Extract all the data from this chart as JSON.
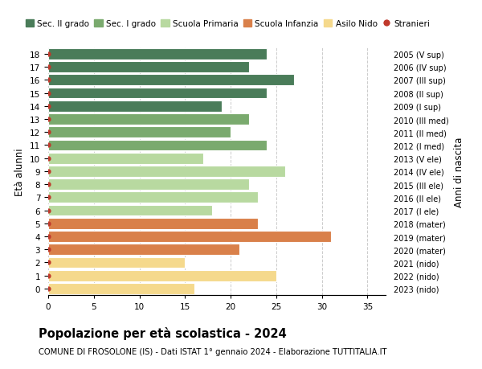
{
  "ages": [
    18,
    17,
    16,
    15,
    14,
    13,
    12,
    11,
    10,
    9,
    8,
    7,
    6,
    5,
    4,
    3,
    2,
    1,
    0
  ],
  "values": [
    24,
    22,
    27,
    24,
    19,
    22,
    20,
    24,
    17,
    26,
    22,
    23,
    18,
    23,
    31,
    21,
    15,
    25,
    16
  ],
  "right_labels": [
    "2005 (V sup)",
    "2006 (IV sup)",
    "2007 (III sup)",
    "2008 (II sup)",
    "2009 (I sup)",
    "2010 (III med)",
    "2011 (II med)",
    "2012 (I med)",
    "2013 (V ele)",
    "2014 (IV ele)",
    "2015 (III ele)",
    "2016 (II ele)",
    "2017 (I ele)",
    "2018 (mater)",
    "2019 (mater)",
    "2020 (mater)",
    "2021 (nido)",
    "2022 (nido)",
    "2023 (nido)"
  ],
  "bar_colors": [
    "#4a7c59",
    "#4a7c59",
    "#4a7c59",
    "#4a7c59",
    "#4a7c59",
    "#7aaa6e",
    "#7aaa6e",
    "#7aaa6e",
    "#b8d9a0",
    "#b8d9a0",
    "#b8d9a0",
    "#b8d9a0",
    "#b8d9a0",
    "#d9804a",
    "#d9804a",
    "#d9804a",
    "#f5d98c",
    "#f5d98c",
    "#f5d98c"
  ],
  "legend_labels": [
    "Sec. II grado",
    "Sec. I grado",
    "Scuola Primaria",
    "Scuola Infanzia",
    "Asilo Nido",
    "Stranieri"
  ],
  "legend_colors": [
    "#4a7c59",
    "#7aaa6e",
    "#b8d9a0",
    "#d9804a",
    "#f5d98c",
    "#c0392b"
  ],
  "title": "Popolazione per età scolastica - 2024",
  "subtitle": "COMUNE DI FROSOLONE (IS) - Dati ISTAT 1° gennaio 2024 - Elaborazione TUTTITALIA.IT",
  "ylabel": "Età alunni",
  "right_ylabel": "Anni di nascita",
  "xlim": [
    0,
    37
  ],
  "xticks": [
    0,
    5,
    10,
    15,
    20,
    25,
    30,
    35
  ],
  "bg_color": "#ffffff",
  "grid_color": "#cccccc",
  "dot_color": "#c0392b"
}
